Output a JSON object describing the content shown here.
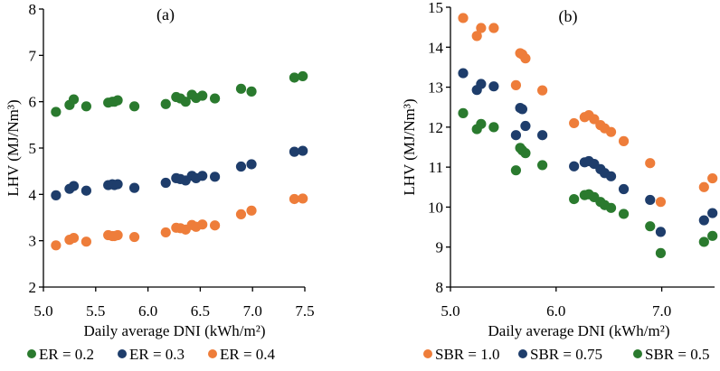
{
  "chart_data": [
    {
      "type": "scatter",
      "title": "(a)",
      "xlabel": "Daily average DNI (kWh/m²)",
      "ylabel": "LHV (MJ/Nm³)",
      "xlim": [
        5.0,
        7.5
      ],
      "ylim": [
        2,
        8
      ],
      "xticks": [
        "5.0",
        "5.5",
        "6.0",
        "6.5",
        "7.0",
        "7.5"
      ],
      "yticks": [
        "2",
        "3",
        "4",
        "5",
        "6",
        "7",
        "8"
      ],
      "grid": false,
      "legend_position": "bottom",
      "x": [
        5.12,
        5.25,
        5.29,
        5.41,
        5.62,
        5.66,
        5.68,
        5.71,
        5.87,
        6.17,
        6.27,
        6.31,
        6.36,
        6.42,
        6.46,
        6.52,
        6.64,
        6.89,
        6.99,
        7.4,
        7.48
      ],
      "series": [
        {
          "name": "ER = 0.2",
          "color": "#2a7a2e",
          "values": [
            5.78,
            5.93,
            6.05,
            5.9,
            5.98,
            6.0,
            6.0,
            6.03,
            5.9,
            5.95,
            6.1,
            6.07,
            6.0,
            6.15,
            6.08,
            6.13,
            6.07,
            6.28,
            6.22,
            6.52,
            6.55
          ]
        },
        {
          "name": "ER = 0.3",
          "color": "#1e3d6b",
          "values": [
            3.98,
            4.12,
            4.18,
            4.08,
            4.2,
            4.22,
            4.2,
            4.22,
            4.14,
            4.25,
            4.35,
            4.33,
            4.3,
            4.4,
            4.35,
            4.4,
            4.38,
            4.6,
            4.65,
            4.92,
            4.94
          ]
        },
        {
          "name": "ER = 0.4",
          "color": "#ee7d3a",
          "values": [
            2.9,
            3.02,
            3.06,
            2.98,
            3.12,
            3.1,
            3.1,
            3.12,
            3.08,
            3.18,
            3.28,
            3.27,
            3.24,
            3.34,
            3.3,
            3.35,
            3.33,
            3.57,
            3.65,
            3.9,
            3.91
          ]
        }
      ]
    },
    {
      "type": "scatter",
      "title": "(b)",
      "xlabel": "Daily average DNI (kWh/m²)",
      "ylabel": "LHV (MJ/Nm³)",
      "xlim": [
        5.0,
        7.5
      ],
      "ylim": [
        8,
        15
      ],
      "xticks": [
        "5.0",
        "6.0",
        "7.0"
      ],
      "yticks": [
        "8",
        "9",
        "10",
        "11",
        "12",
        "13",
        "14",
        "15"
      ],
      "grid": false,
      "legend_position": "bottom",
      "x": [
        5.12,
        5.25,
        5.29,
        5.41,
        5.62,
        5.66,
        5.68,
        5.71,
        5.87,
        6.17,
        6.27,
        6.31,
        6.36,
        6.42,
        6.46,
        6.52,
        6.64,
        6.89,
        6.99,
        7.4,
        7.48
      ],
      "series": [
        {
          "name": "SBR  = 1.0",
          "color": "#ee7d3a",
          "values": [
            14.73,
            14.28,
            14.48,
            14.48,
            13.05,
            13.85,
            13.82,
            13.72,
            12.92,
            12.1,
            12.25,
            12.3,
            12.2,
            12.05,
            11.97,
            11.88,
            11.65,
            11.1,
            10.13,
            10.5,
            10.72
          ]
        },
        {
          "name": "SBR = 0.75",
          "color": "#1e3d6b",
          "values": [
            13.35,
            12.93,
            13.08,
            13.02,
            11.8,
            12.48,
            12.45,
            12.03,
            11.8,
            11.02,
            11.12,
            11.15,
            11.08,
            10.95,
            10.85,
            10.77,
            10.45,
            10.18,
            9.38,
            9.67,
            9.85
          ]
        },
        {
          "name": "SBR = 0.5",
          "color": "#2a7a2e",
          "values": [
            12.35,
            11.95,
            12.08,
            12.0,
            10.92,
            11.48,
            11.42,
            11.35,
            11.05,
            10.2,
            10.3,
            10.32,
            10.25,
            10.13,
            10.05,
            9.98,
            9.83,
            9.52,
            8.85,
            9.13,
            9.28
          ]
        }
      ]
    }
  ]
}
